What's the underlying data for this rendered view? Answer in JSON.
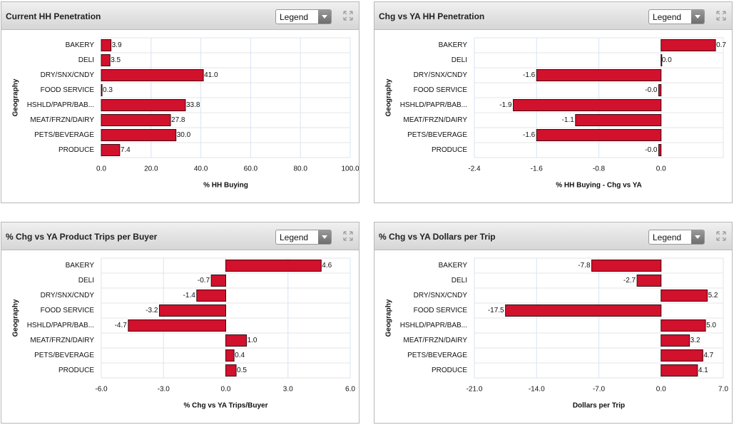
{
  "chart_data": [
    {
      "type": "bar",
      "orientation": "horizontal",
      "title": "Current HH Penetration",
      "dropdown": "Legend",
      "y_label": "Geography",
      "x_label": "% HH Buying",
      "categories": [
        "BAKERY",
        "DELI",
        "DRY/SNX/CNDY",
        "FOOD SERVICE",
        "HSHLD/PAPR/BAB...",
        "MEAT/FRZN/DAIRY",
        "PETS/BEVERAGE",
        "PRODUCE"
      ],
      "values": [
        3.9,
        3.5,
        41.0,
        0.3,
        33.8,
        27.8,
        30.0,
        7.4
      ],
      "value_labels": [
        "3.9",
        "3.5",
        "41.0",
        "0.3",
        "33.8",
        "27.8",
        "30.0",
        "7.4"
      ],
      "color": "#d2112d",
      "xlim": [
        0,
        100
      ],
      "xticks": [
        {
          "value": 0,
          "label": "0.0"
        },
        {
          "value": 20,
          "label": "20.0"
        },
        {
          "value": 40,
          "label": "40.0"
        },
        {
          "value": 60,
          "label": "60.0"
        },
        {
          "value": 80,
          "label": "80.0"
        },
        {
          "value": 100,
          "label": "100.0"
        }
      ],
      "grid": true
    },
    {
      "type": "bar",
      "orientation": "horizontal",
      "title": "Chg vs YA HH Penetration",
      "dropdown": "Legend",
      "y_label": "Geography",
      "x_label": "% HH Buying - Chg vs YA",
      "categories": [
        "BAKERY",
        "DELI",
        "DRY/SNX/CNDY",
        "FOOD SERVICE",
        "HSHLD/PAPR/BAB...",
        "MEAT/FRZN/DAIRY",
        "PETS/BEVERAGE",
        "PRODUCE"
      ],
      "values": [
        0.7,
        0.0,
        -1.6,
        -0.03,
        -1.9,
        -1.1,
        -1.6,
        -0.03
      ],
      "value_labels": [
        "0.7",
        "0.0",
        "-1.6",
        "-0.0",
        "-1.9",
        "-1.1",
        "-1.6",
        "-0.0"
      ],
      "color": "#d2112d",
      "xlim": [
        -2.4,
        0.8
      ],
      "xticks": [
        -2.4,
        -1.6,
        -0.8,
        {
          "value": 0,
          "label": "0.0"
        }
      ],
      "grid": true
    },
    {
      "type": "bar",
      "orientation": "horizontal",
      "title": "% Chg vs YA Product Trips per Buyer",
      "dropdown": "Legend",
      "y_label": "Geography",
      "x_label": "% Chg vs YA Trips/Buyer",
      "categories": [
        "BAKERY",
        "DELI",
        "DRY/SNX/CNDY",
        "FOOD SERVICE",
        "HSHLD/PAPR/BAB...",
        "MEAT/FRZN/DAIRY",
        "PETS/BEVERAGE",
        "PRODUCE"
      ],
      "values": [
        4.6,
        -0.7,
        -1.4,
        -3.2,
        -4.7,
        1.0,
        0.4,
        0.5
      ],
      "value_labels": [
        "4.6",
        "-0.7",
        "-1.4",
        "-3.2",
        "-4.7",
        "1.0",
        "0.4",
        "0.5"
      ],
      "color": "#d2112d",
      "xlim": [
        -6,
        6
      ],
      "xticks": [
        {
          "value": -6,
          "label": "-6.0"
        },
        {
          "value": -3,
          "label": "-3.0"
        },
        {
          "value": 0,
          "label": "0.0"
        },
        {
          "value": 3,
          "label": "3.0"
        },
        {
          "value": 6,
          "label": "6.0"
        }
      ],
      "grid": true
    },
    {
      "type": "bar",
      "orientation": "horizontal",
      "title": "% Chg vs YA Dollars per Trip",
      "dropdown": "Legend",
      "y_label": "Geography",
      "x_label": "Dollars per Trip",
      "categories": [
        "BAKERY",
        "DELI",
        "DRY/SNX/CNDY",
        "FOOD SERVICE",
        "HSHLD/PAPR/BAB...",
        "MEAT/FRZN/DAIRY",
        "PETS/BEVERAGE",
        "PRODUCE"
      ],
      "values": [
        -7.8,
        -2.7,
        5.2,
        -17.5,
        5.0,
        3.2,
        4.7,
        4.1
      ],
      "value_labels": [
        "-7.8",
        "-2.7",
        "5.2",
        "-17.5",
        "5.0",
        "3.2",
        "4.7",
        "4.1"
      ],
      "color": "#d2112d",
      "xlim": [
        -21,
        7
      ],
      "xticks": [
        {
          "value": -21,
          "label": "-21.0"
        },
        {
          "value": -14,
          "label": "-14.0"
        },
        {
          "value": -7,
          "label": "-7.0"
        },
        {
          "value": 0,
          "label": "0.0"
        },
        {
          "value": 7,
          "label": "7.0"
        }
      ],
      "grid": true
    }
  ]
}
